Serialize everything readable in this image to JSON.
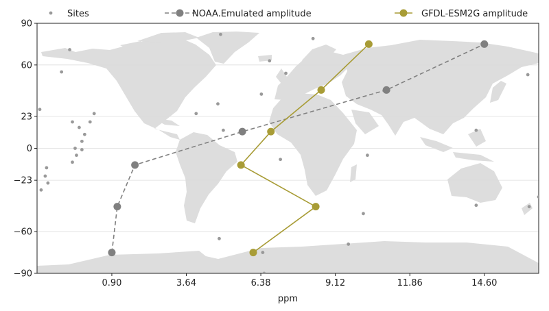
{
  "chart_data": {
    "type": "line",
    "title": "",
    "xlabel": "ppm",
    "ylabel": "",
    "xlim": [
      -1.85,
      16.6
    ],
    "ylim": [
      -90,
      90
    ],
    "xticks": [
      0.9,
      3.64,
      6.38,
      9.12,
      11.86,
      14.6
    ],
    "xtick_labels": [
      "0.90",
      "3.64",
      "6.38",
      "9.12",
      "11.86",
      "14.60"
    ],
    "yticks": [
      -90,
      -60,
      -23,
      0,
      23,
      60,
      90
    ],
    "ytick_labels": [
      "−90",
      "−60",
      "−23",
      "0",
      "23",
      "60",
      "90"
    ],
    "grid": "horizontal",
    "legend": "top",
    "background": "world-map",
    "series": [
      {
        "name": "Sites",
        "kind": "scatter",
        "color": "#999999",
        "points": [
          [
            -1.75,
            28
          ],
          [
            -1.7,
            -30
          ],
          [
            -1.55,
            -20
          ],
          [
            -1.5,
            -14
          ],
          [
            -1.45,
            -25
          ],
          [
            -0.95,
            55
          ],
          [
            -0.65,
            71
          ],
          [
            -0.55,
            19
          ],
          [
            -0.3,
            15
          ],
          [
            -0.1,
            10
          ],
          [
            0.1,
            19
          ],
          [
            0.25,
            25
          ],
          [
            -0.2,
            5
          ],
          [
            -0.45,
            0
          ],
          [
            -0.4,
            -5
          ],
          [
            -0.55,
            -10
          ],
          [
            -0.2,
            -1
          ],
          [
            4.0,
            25
          ],
          [
            4.8,
            32
          ],
          [
            5.0,
            13
          ],
          [
            4.9,
            82
          ],
          [
            6.4,
            39
          ],
          [
            6.7,
            63
          ],
          [
            7.3,
            54
          ],
          [
            8.3,
            79
          ],
          [
            7.1,
            -8
          ],
          [
            10.3,
            -5
          ],
          [
            10.15,
            -47
          ],
          [
            9.6,
            -69
          ],
          [
            6.45,
            -75
          ],
          [
            6.5,
            -90
          ],
          [
            4.85,
            -65
          ],
          [
            14.3,
            13
          ],
          [
            14.3,
            -41
          ],
          [
            16.2,
            53
          ],
          [
            16.25,
            -42
          ],
          [
            16.6,
            -35
          ]
        ]
      },
      {
        "name": "NOAA.Emulated amplitude",
        "kind": "dashed-line",
        "color": "#808080",
        "points": [
          [
            0.9,
            -75
          ],
          [
            1.1,
            -42
          ],
          [
            1.75,
            -12
          ],
          [
            5.7,
            12
          ],
          [
            11.0,
            42
          ],
          [
            14.6,
            75
          ]
        ]
      },
      {
        "name": "GFDL-ESM2G amplitude",
        "kind": "solid-line",
        "color": "#A89C36",
        "points": [
          [
            6.1,
            -75
          ],
          [
            8.4,
            -42
          ],
          [
            5.65,
            -12
          ],
          [
            6.75,
            12
          ],
          [
            8.6,
            42
          ],
          [
            10.35,
            75
          ]
        ]
      }
    ]
  }
}
